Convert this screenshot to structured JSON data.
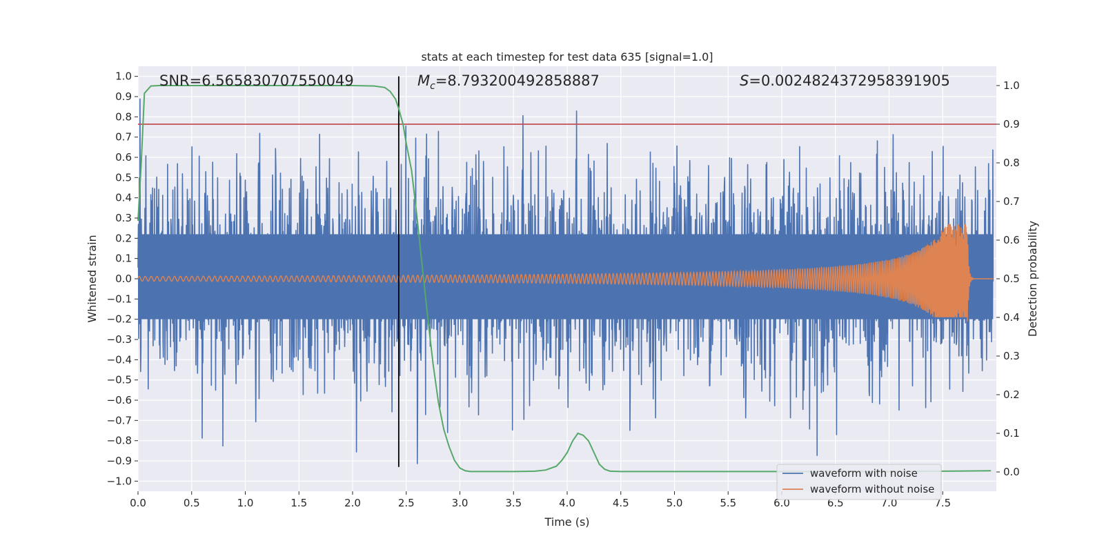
{
  "chart_data": {
    "type": "line",
    "title": "stats at each timestep for test data 635 [signal=1.0]",
    "xlabel": "Time (s)",
    "ylabel": "Whitened strain",
    "ylabel_right": "Detection probability",
    "xlim": [
      0.0,
      8.0
    ],
    "ylim": [
      -1.05,
      1.05
    ],
    "ylim_right": [
      -0.05,
      1.05
    ],
    "x_ticks": [
      "0.0",
      "0.5",
      "1.0",
      "1.5",
      "2.0",
      "2.5",
      "3.0",
      "3.5",
      "4.0",
      "4.5",
      "5.0",
      "5.5",
      "6.0",
      "6.5",
      "7.0",
      "7.5"
    ],
    "x_tick_values": [
      0.0,
      0.5,
      1.0,
      1.5,
      2.0,
      2.5,
      3.0,
      3.5,
      4.0,
      4.5,
      5.0,
      5.5,
      6.0,
      6.5,
      7.0,
      7.5
    ],
    "y_ticks": [
      "1.0",
      "0.9",
      "0.8",
      "0.7",
      "0.6",
      "0.5",
      "0.4",
      "0.3",
      "0.2",
      "0.1",
      "0.0",
      "−0.1",
      "−0.2",
      "−0.3",
      "−0.4",
      "−0.5",
      "−0.6",
      "−0.7",
      "−0.8",
      "−0.9",
      "−1.0"
    ],
    "y_tick_values": [
      1.0,
      0.9,
      0.8,
      0.7,
      0.6,
      0.5,
      0.4,
      0.3,
      0.2,
      0.1,
      0.0,
      -0.1,
      -0.2,
      -0.3,
      -0.4,
      -0.5,
      -0.6,
      -0.7,
      -0.8,
      -0.9,
      -1.0
    ],
    "y_right_ticks": [
      "1.0",
      "0.9",
      "0.8",
      "0.7",
      "0.6",
      "0.5",
      "0.4",
      "0.3",
      "0.2",
      "0.1",
      "0.0"
    ],
    "y_right_tick_values": [
      1.0,
      0.9,
      0.8,
      0.7,
      0.6,
      0.5,
      0.4,
      0.3,
      0.2,
      0.1,
      0.0
    ],
    "annotations": {
      "snr": "SNR=6.565830707550049",
      "mc_symbol": "M",
      "mc_sub": "c",
      "mc_value": "=8.793200492858887",
      "s_symbol": "S",
      "s_value": "=0.0024824372958391905"
    },
    "threshold_right": 0.9,
    "vertical_line_x": 2.43,
    "noise_envelope": {
      "typical_abs": 0.35,
      "peak_max": 1.0,
      "peak_min": -0.93
    },
    "chirp": {
      "t_merger": 7.73,
      "amp_start": 0.012,
      "amp_peak": 0.27,
      "amp_min": -0.19
    },
    "detection_probability": {
      "x": [
        0.0,
        0.03,
        0.06,
        0.12,
        0.2,
        0.5,
        1.0,
        1.5,
        2.0,
        2.2,
        2.3,
        2.35,
        2.4,
        2.43,
        2.47,
        2.5,
        2.55,
        2.6,
        2.65,
        2.7,
        2.75,
        2.8,
        2.85,
        2.9,
        2.95,
        3.0,
        3.05,
        3.1,
        3.5,
        3.7,
        3.8,
        3.9,
        3.95,
        4.0,
        4.05,
        4.1,
        4.15,
        4.2,
        4.25,
        4.3,
        4.35,
        4.4,
        4.5,
        5.0,
        6.0,
        7.0,
        7.5,
        7.95
      ],
      "y": [
        0.65,
        0.8,
        0.98,
        0.999,
        1.0,
        1.0,
        1.0,
        1.0,
        1.0,
        0.999,
        0.995,
        0.985,
        0.965,
        0.94,
        0.9,
        0.85,
        0.78,
        0.66,
        0.53,
        0.4,
        0.28,
        0.18,
        0.11,
        0.065,
        0.03,
        0.01,
        0.003,
        0.001,
        0.001,
        0.002,
        0.005,
        0.015,
        0.03,
        0.05,
        0.08,
        0.1,
        0.095,
        0.08,
        0.05,
        0.02,
        0.007,
        0.002,
        0.001,
        0.001,
        0.001,
        0.001,
        0.002,
        0.003
      ]
    },
    "legend": {
      "position": "lower-right",
      "entries": [
        {
          "label": "waveform with noise",
          "color": "#4c72b0"
        },
        {
          "label": "waveform without noise",
          "color": "#dd8452"
        }
      ]
    },
    "colors": {
      "noise": "#4c72b0",
      "clean": "#dd8452",
      "probability": "#55a868",
      "threshold": "#c44e52",
      "vline": "#000000",
      "plot_bg": "#eaeaf2",
      "grid": "#ffffff"
    }
  }
}
